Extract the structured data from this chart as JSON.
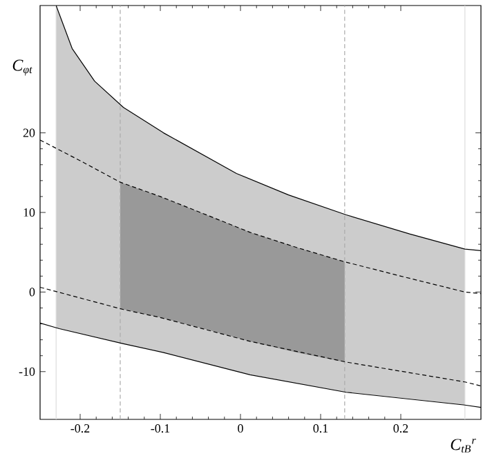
{
  "chart_data": {
    "type": "line",
    "xlabel": "C$_{tB}$$^{r}$",
    "ylabel": "C$_{φt}$",
    "xlim": [
      -0.25,
      0.3
    ],
    "ylim": [
      -16,
      36
    ],
    "xticks": [
      -0.2,
      -0.1,
      0,
      0.1,
      0.2
    ],
    "yticks": [
      -10,
      0,
      10,
      20
    ],
    "grid": false,
    "marker": "none",
    "series": [
      {
        "color": "#cccccc",
        "x": [
          -0.23,
          -0.21,
          -0.182,
          -0.146,
          -0.096,
          -0.005,
          0.06,
          0.132,
          0.211,
          0.28
        ],
        "values": [
          null,
          null,
          null,
          null,
          null,
          null,
          null,
          null,
          null,
          null
        ],
        "upper": [
          36,
          30.6,
          26.5,
          23.2,
          20.0,
          14.9,
          12.2,
          9.7,
          7.3,
          5.4
        ],
        "lower": [
          -4.5,
          -5.0,
          -5.6,
          -6.5,
          -7.6,
          -10.0,
          -11.3,
          -12.6,
          -13.4,
          -14.2
        ]
      },
      {
        "color": "#999999",
        "x": [
          -0.15,
          -0.1,
          -0.05,
          0.012,
          0.07,
          0.13
        ],
        "values": [
          null,
          null,
          null,
          null,
          null,
          null
        ],
        "upper": [
          13.8,
          12.0,
          10.0,
          7.5,
          5.6,
          3.8
        ],
        "lower": [
          -2.1,
          -3.2,
          -4.5,
          -6.2,
          -7.6,
          -8.8
        ]
      },
      {
        "color": "#000000",
        "line_style": "solid",
        "x": [
          -0.23,
          -0.21,
          -0.182,
          -0.146,
          -0.096,
          -0.005,
          0.06,
          0.132,
          0.211,
          0.28,
          0.3
        ],
        "values": [
          36,
          30.6,
          26.5,
          23.2,
          20.0,
          14.9,
          12.2,
          9.7,
          7.3,
          5.4,
          5.2
        ]
      },
      {
        "color": "#000000",
        "line_style": "solid",
        "x": [
          -0.25,
          -0.226,
          -0.146,
          -0.096,
          0.012,
          0.132,
          0.28,
          0.3
        ],
        "values": [
          -3.9,
          -4.6,
          -6.5,
          -7.6,
          -10.4,
          -12.6,
          -14.2,
          -14.5
        ]
      },
      {
        "color": "#000000",
        "line_style": "dashed",
        "x": [
          -0.25,
          -0.2,
          -0.15,
          -0.1,
          -0.05,
          0.012,
          0.07,
          0.13,
          0.2,
          0.28,
          0.3
        ],
        "values": [
          19.1,
          16.5,
          13.8,
          12.0,
          10.0,
          7.5,
          5.6,
          3.8,
          2.0,
          0.0,
          -0.2
        ]
      },
      {
        "color": "#000000",
        "line_style": "dashed",
        "x": [
          -0.25,
          -0.146,
          -0.1,
          0.012,
          0.132,
          0.28,
          0.3
        ],
        "values": [
          0.6,
          -2.2,
          -3.2,
          -6.2,
          -8.8,
          -11.3,
          -11.8
        ]
      }
    ],
    "ref_lines": [
      {
        "axis": "x",
        "value": -0.23,
        "color": "#dddddd",
        "line_style": "solid"
      },
      {
        "axis": "x",
        "value": -0.15,
        "color": "#aaaaaa",
        "line_style": "dashed"
      },
      {
        "axis": "x",
        "value": 0.13,
        "color": "#aaaaaa",
        "line_style": "dashed"
      },
      {
        "axis": "x",
        "value": 0.28,
        "color": "#dddddd",
        "line_style": "solid"
      }
    ]
  }
}
